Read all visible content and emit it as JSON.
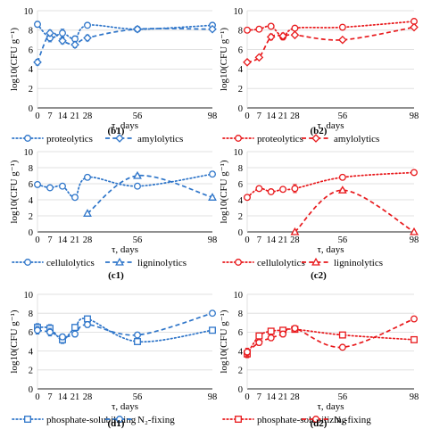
{
  "colors": {
    "blue": "#2E75C9",
    "red": "#E8191C",
    "axis": "#222222",
    "grid": "#D9D9D9"
  },
  "chart_data": [
    {
      "id": "b1",
      "panel_label": "(b1)",
      "type": "line",
      "color": "#2E75C9",
      "ylabel": "log10(CFU g⁻¹)",
      "xlabel": "τ, days",
      "x_ticks": [
        0,
        7,
        14,
        21,
        28,
        56,
        98
      ],
      "y_ticks": [
        0,
        2,
        4,
        6,
        8,
        10
      ],
      "xlim": [
        0,
        98
      ],
      "ylim": [
        0,
        10
      ],
      "grid": "horizontal",
      "legend_position": "bottom",
      "series": [
        {
          "name": "proteolytics",
          "line": "dotted",
          "marker": "circle",
          "x": [
            0,
            7,
            14,
            21,
            28,
            56,
            98
          ],
          "y": [
            8.6,
            7.2,
            7.7,
            7.1,
            8.5,
            8.1,
            8.5
          ],
          "err": [
            0.3,
            0.4,
            0.4,
            0.3,
            0.2,
            0.2,
            0.2
          ]
        },
        {
          "name": "amylolytics",
          "line": "dashed",
          "marker": "diamond",
          "x": [
            0,
            7,
            14,
            21,
            28,
            56,
            98
          ],
          "y": [
            4.7,
            7.7,
            6.9,
            6.5,
            7.2,
            8.1,
            8.1
          ],
          "err": [
            0.3,
            0.3,
            0.3,
            0.3,
            0.3,
            0.2,
            0.2
          ]
        }
      ]
    },
    {
      "id": "b2",
      "panel_label": "(b2)",
      "type": "line",
      "color": "#E8191C",
      "ylabel": "log10(CFU g⁻¹)",
      "xlabel": "τ, days",
      "x_ticks": [
        0,
        7,
        14,
        21,
        28,
        56,
        98
      ],
      "y_ticks": [
        0,
        2,
        4,
        6,
        8,
        10
      ],
      "xlim": [
        0,
        98
      ],
      "ylim": [
        0,
        10
      ],
      "grid": "horizontal",
      "legend_position": "bottom",
      "series": [
        {
          "name": "proteolytics",
          "line": "dotted",
          "marker": "circle",
          "x": [
            0,
            7,
            14,
            21,
            28,
            56,
            98
          ],
          "y": [
            8.0,
            8.1,
            8.4,
            7.3,
            8.2,
            8.3,
            8.9
          ],
          "err": [
            0.2,
            0.2,
            0.2,
            0.3,
            0.2,
            0.2,
            0.2
          ]
        },
        {
          "name": "amylolytics",
          "line": "dashed",
          "marker": "diamond",
          "x": [
            0,
            7,
            14,
            21,
            28,
            56,
            98
          ],
          "y": [
            4.7,
            5.2,
            7.3,
            7.4,
            7.5,
            7.0,
            8.3
          ],
          "err": [
            0.2,
            0.2,
            0.3,
            0.3,
            0.2,
            0.2,
            0.2
          ]
        }
      ]
    },
    {
      "id": "c1",
      "panel_label": "(c1)",
      "type": "line",
      "color": "#2E75C9",
      "ylabel": "log10(CFU g⁻¹)",
      "xlabel": "τ, days",
      "x_ticks": [
        0,
        7,
        14,
        21,
        28,
        56,
        98
      ],
      "y_ticks": [
        0,
        2,
        4,
        6,
        8,
        10
      ],
      "xlim": [
        0,
        98
      ],
      "ylim": [
        0,
        10
      ],
      "grid": "horizontal",
      "legend_position": "bottom",
      "series": [
        {
          "name": "cellulolytics",
          "line": "dotted",
          "marker": "circle",
          "x": [
            0,
            7,
            14,
            21,
            28,
            56,
            98
          ],
          "y": [
            5.9,
            5.5,
            5.7,
            4.3,
            6.8,
            5.7,
            7.2
          ],
          "err": [
            0.2,
            0.3,
            0.2,
            0.3,
            0.2,
            0.2,
            0.2
          ]
        },
        {
          "name": "ligninolytics",
          "line": "dashed",
          "marker": "triangle",
          "x": [
            28,
            56,
            98
          ],
          "y": [
            2.3,
            7.0,
            4.3
          ],
          "err": [
            0.1,
            0.2,
            0.2
          ]
        }
      ]
    },
    {
      "id": "c2",
      "panel_label": "(c2)",
      "type": "line",
      "color": "#E8191C",
      "ylabel": "log10(CFU g⁻¹)",
      "xlabel": "τ, days",
      "x_ticks": [
        0,
        7,
        14,
        21,
        28,
        56,
        98
      ],
      "y_ticks": [
        0,
        2,
        4,
        6,
        8,
        10
      ],
      "xlim": [
        0,
        98
      ],
      "ylim": [
        0,
        10
      ],
      "grid": "horizontal",
      "legend_position": "bottom",
      "series": [
        {
          "name": "cellulolytics",
          "line": "dotted",
          "marker": "circle",
          "x": [
            0,
            7,
            14,
            21,
            28,
            56,
            98
          ],
          "y": [
            4.3,
            5.4,
            5.0,
            5.3,
            5.4,
            6.8,
            7.4
          ],
          "err": [
            0.2,
            0.2,
            0.2,
            0.3,
            0.5,
            0.2,
            0.2
          ]
        },
        {
          "name": "ligninolytics",
          "line": "dashed",
          "marker": "triangle",
          "x": [
            28,
            56,
            98
          ],
          "y": [
            0.0,
            5.2,
            0.0
          ],
          "err": [
            0,
            0.2,
            0
          ]
        }
      ]
    },
    {
      "id": "d1",
      "panel_label": "(d1)",
      "type": "line",
      "color": "#2E75C9",
      "ylabel": "log10(CFU g⁻¹)",
      "xlabel": "τ, days",
      "x_ticks": [
        0,
        7,
        14,
        21,
        28,
        56,
        98
      ],
      "y_ticks": [
        0,
        2,
        4,
        6,
        8,
        10
      ],
      "xlim": [
        0,
        98
      ],
      "ylim": [
        0,
        10
      ],
      "grid": "horizontal",
      "legend_position": "bottom",
      "series": [
        {
          "name": "phosphate-solubilizing",
          "line": "dotted",
          "marker": "square",
          "x": [
            0,
            7,
            14,
            21,
            28,
            56,
            98
          ],
          "y": [
            6.5,
            6.4,
            5.2,
            6.5,
            7.4,
            5.0,
            6.2
          ],
          "err": [
            0.4,
            0.4,
            0.4,
            0.3,
            0.3,
            0.2,
            0.2
          ]
        },
        {
          "name": "N₂-fixing",
          "line": "dashed",
          "marker": "circle",
          "x": [
            0,
            7,
            14,
            21,
            28,
            56,
            98
          ],
          "y": [
            6.2,
            6.0,
            5.5,
            5.8,
            6.8,
            5.7,
            8.0
          ],
          "err": [
            0.4,
            0.4,
            0.3,
            0.3,
            0.3,
            0.2,
            0.2
          ]
        }
      ]
    },
    {
      "id": "d2",
      "panel_label": "(d2)",
      "type": "line",
      "color": "#E8191C",
      "ylabel": "log10(CFU g⁻¹)",
      "xlabel": "τ, days",
      "x_ticks": [
        0,
        7,
        14,
        21,
        28,
        56,
        98
      ],
      "y_ticks": [
        0,
        2,
        4,
        6,
        8,
        10
      ],
      "xlim": [
        0,
        98
      ],
      "ylim": [
        0,
        10
      ],
      "grid": "horizontal",
      "legend_position": "bottom",
      "series": [
        {
          "name": "phosphate-solubilizing",
          "line": "dotted",
          "marker": "square",
          "x": [
            0,
            7,
            14,
            21,
            28,
            56,
            98
          ],
          "y": [
            3.7,
            5.6,
            6.1,
            6.2,
            6.3,
            5.7,
            5.2
          ],
          "err": [
            0.4,
            0.3,
            0.3,
            0.3,
            0.3,
            0.2,
            0.2
          ]
        },
        {
          "name": "N₂-fixing",
          "line": "dashed",
          "marker": "circle",
          "x": [
            0,
            7,
            14,
            21,
            28,
            56,
            98
          ],
          "y": [
            3.9,
            4.9,
            5.4,
            5.8,
            6.4,
            4.4,
            7.4
          ],
          "err": [
            0.4,
            0.3,
            0.3,
            0.3,
            0.3,
            0.2,
            0.2
          ]
        }
      ]
    }
  ]
}
